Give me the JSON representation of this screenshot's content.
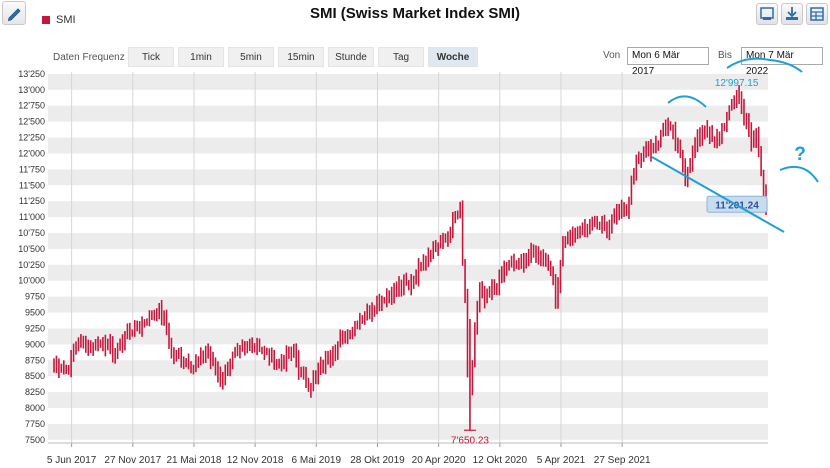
{
  "chart_data": {
    "type": "ohlc",
    "title": "SMI (Swiss Market Index SMI)",
    "legend": [
      "SMI"
    ],
    "xlabel": "",
    "ylabel": "",
    "y_ticks": [
      7500,
      7750,
      8000,
      8250,
      8500,
      8750,
      9000,
      9250,
      9500,
      9750,
      10000,
      10250,
      10500,
      10750,
      11000,
      11250,
      11500,
      11750,
      12000,
      12250,
      12500,
      12750,
      13000,
      13250
    ],
    "y_tick_labels": [
      "7500",
      "7750",
      "8000",
      "8250",
      "8500",
      "8750",
      "9000",
      "9250",
      "9500",
      "9750",
      "10'000",
      "10'250",
      "10'500",
      "10'750",
      "11'000",
      "11'250",
      "11'500",
      "11'750",
      "12'000",
      "12'250",
      "12'500",
      "12'750",
      "13'000",
      "13'250"
    ],
    "ylim": [
      7450,
      13280
    ],
    "x_tick_labels": [
      "5 Jun 2017",
      "27 Nov 2017",
      "21 Mai 2018",
      "12 Nov 2018",
      "6 Mai 2019",
      "28 Okt 2019",
      "20 Apr 2020",
      "12 Okt 2020",
      "5 Apr 2021",
      "27 Sep 2021"
    ],
    "grid": true,
    "annotations": {
      "max_label": "12'997.15",
      "max_value": 12997.15,
      "min_label": "7'650.23",
      "min_value": 7650.23,
      "last_label": "11'201.24",
      "last_value": 11201.24,
      "question_mark": "?"
    },
    "close_anchors": [
      [
        0,
        8700
      ],
      [
        5,
        8600
      ],
      [
        10,
        9050
      ],
      [
        15,
        8950
      ],
      [
        20,
        9050
      ],
      [
        25,
        8850
      ],
      [
        30,
        9200
      ],
      [
        35,
        9300
      ],
      [
        42,
        9550
      ],
      [
        45,
        9400
      ],
      [
        48,
        8850
      ],
      [
        52,
        8800
      ],
      [
        57,
        8650
      ],
      [
        62,
        8900
      ],
      [
        68,
        8450
      ],
      [
        73,
        8800
      ],
      [
        78,
        8950
      ],
      [
        83,
        9000
      ],
      [
        88,
        8800
      ],
      [
        93,
        8700
      ],
      [
        98,
        8900
      ],
      [
        101,
        8500
      ],
      [
        105,
        8350
      ],
      [
        110,
        8700
      ],
      [
        116,
        9000
      ],
      [
        121,
        9200
      ],
      [
        127,
        9500
      ],
      [
        131,
        9600
      ],
      [
        135,
        9750
      ],
      [
        141,
        9900
      ],
      [
        146,
        9950
      ],
      [
        151,
        10350
      ],
      [
        158,
        10600
      ],
      [
        161,
        10700
      ],
      [
        164,
        11000
      ],
      [
        166,
        11100
      ],
      [
        167,
        10250
      ],
      [
        168,
        9800
      ],
      [
        169,
        8500
      ],
      [
        170,
        8200
      ],
      [
        172,
        9200
      ],
      [
        174,
        9850
      ],
      [
        176,
        9700
      ],
      [
        180,
        9900
      ],
      [
        185,
        10250
      ],
      [
        190,
        10250
      ],
      [
        195,
        10400
      ],
      [
        199,
        10400
      ],
      [
        203,
        10200
      ],
      [
        205,
        9700
      ],
      [
        208,
        10600
      ],
      [
        212,
        10700
      ],
      [
        218,
        10850
      ],
      [
        224,
        10950
      ],
      [
        226,
        10800
      ],
      [
        230,
        11150
      ],
      [
        234,
        11050
      ],
      [
        236,
        11600
      ],
      [
        238,
        11900
      ],
      [
        242,
        12050
      ],
      [
        247,
        12200
      ],
      [
        250,
        12450
      ],
      [
        253,
        12300
      ],
      [
        256,
        11950
      ],
      [
        258,
        11650
      ],
      [
        262,
        12150
      ],
      [
        266,
        12400
      ],
      [
        270,
        12150
      ],
      [
        273,
        12400
      ],
      [
        276,
        12650
      ],
      [
        278,
        12800
      ],
      [
        279,
        12950
      ],
      [
        281,
        12750
      ],
      [
        283,
        12500
      ],
      [
        285,
        12100
      ],
      [
        287,
        12350
      ],
      [
        288,
        12050
      ],
      [
        289,
        11700
      ],
      [
        290,
        11450
      ],
      [
        291,
        11200
      ]
    ]
  },
  "header": {
    "title": "SMI (Swiss Market Index SMI)",
    "legend_label": "SMI",
    "edit_icon": "pencil-icon",
    "tool_icons": [
      "image-export-icon",
      "download-icon",
      "table-icon"
    ]
  },
  "toolbar": {
    "frequency_label": "Daten Frequenz",
    "frequencies": [
      "Tick",
      "1min",
      "5min",
      "15min",
      "Stunde",
      "Tag",
      "Woche"
    ],
    "active_frequency": "Woche",
    "from_label": "Von",
    "from_value": "Mon 6 Mär 2017",
    "to_label": "Bis",
    "to_value": "Mon 7 Mär 2022"
  },
  "colors": {
    "series": "#c4183c",
    "annotation": "#1f9fd6",
    "grid_band": "#ececec",
    "last_label_bg": "#c7dced"
  }
}
